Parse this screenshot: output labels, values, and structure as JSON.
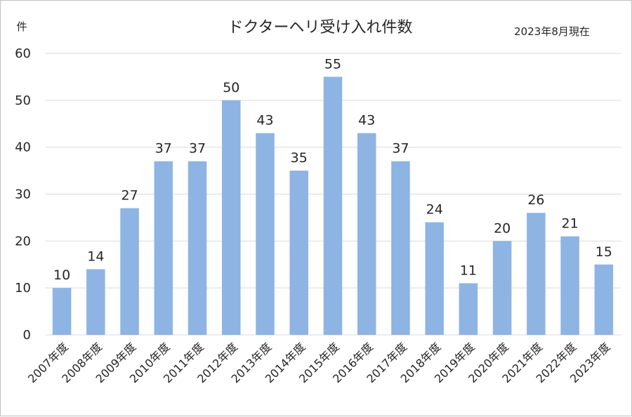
{
  "chart_data": {
    "type": "bar",
    "title": "ドクターヘリ受け入れ件数",
    "note": "2023年8月現在",
    "ylabel": "件",
    "xlabel": "",
    "ylim": [
      0,
      60
    ],
    "yticks": [
      0,
      10,
      20,
      30,
      40,
      50,
      60
    ],
    "grid": true,
    "bar_color": "#8eb4e3",
    "categories": [
      "2007年度",
      "2008年度",
      "2009年度",
      "2010年度",
      "2011年度",
      "2012年度",
      "2013年度",
      "2014年度",
      "2015年度",
      "2016年度",
      "2017年度",
      "2018年度",
      "2019年度",
      "2020年度",
      "2021年度",
      "2022年度",
      "2023年度"
    ],
    "values": [
      10,
      14,
      27,
      37,
      37,
      50,
      43,
      35,
      55,
      43,
      37,
      24,
      11,
      20,
      26,
      21,
      15
    ]
  }
}
